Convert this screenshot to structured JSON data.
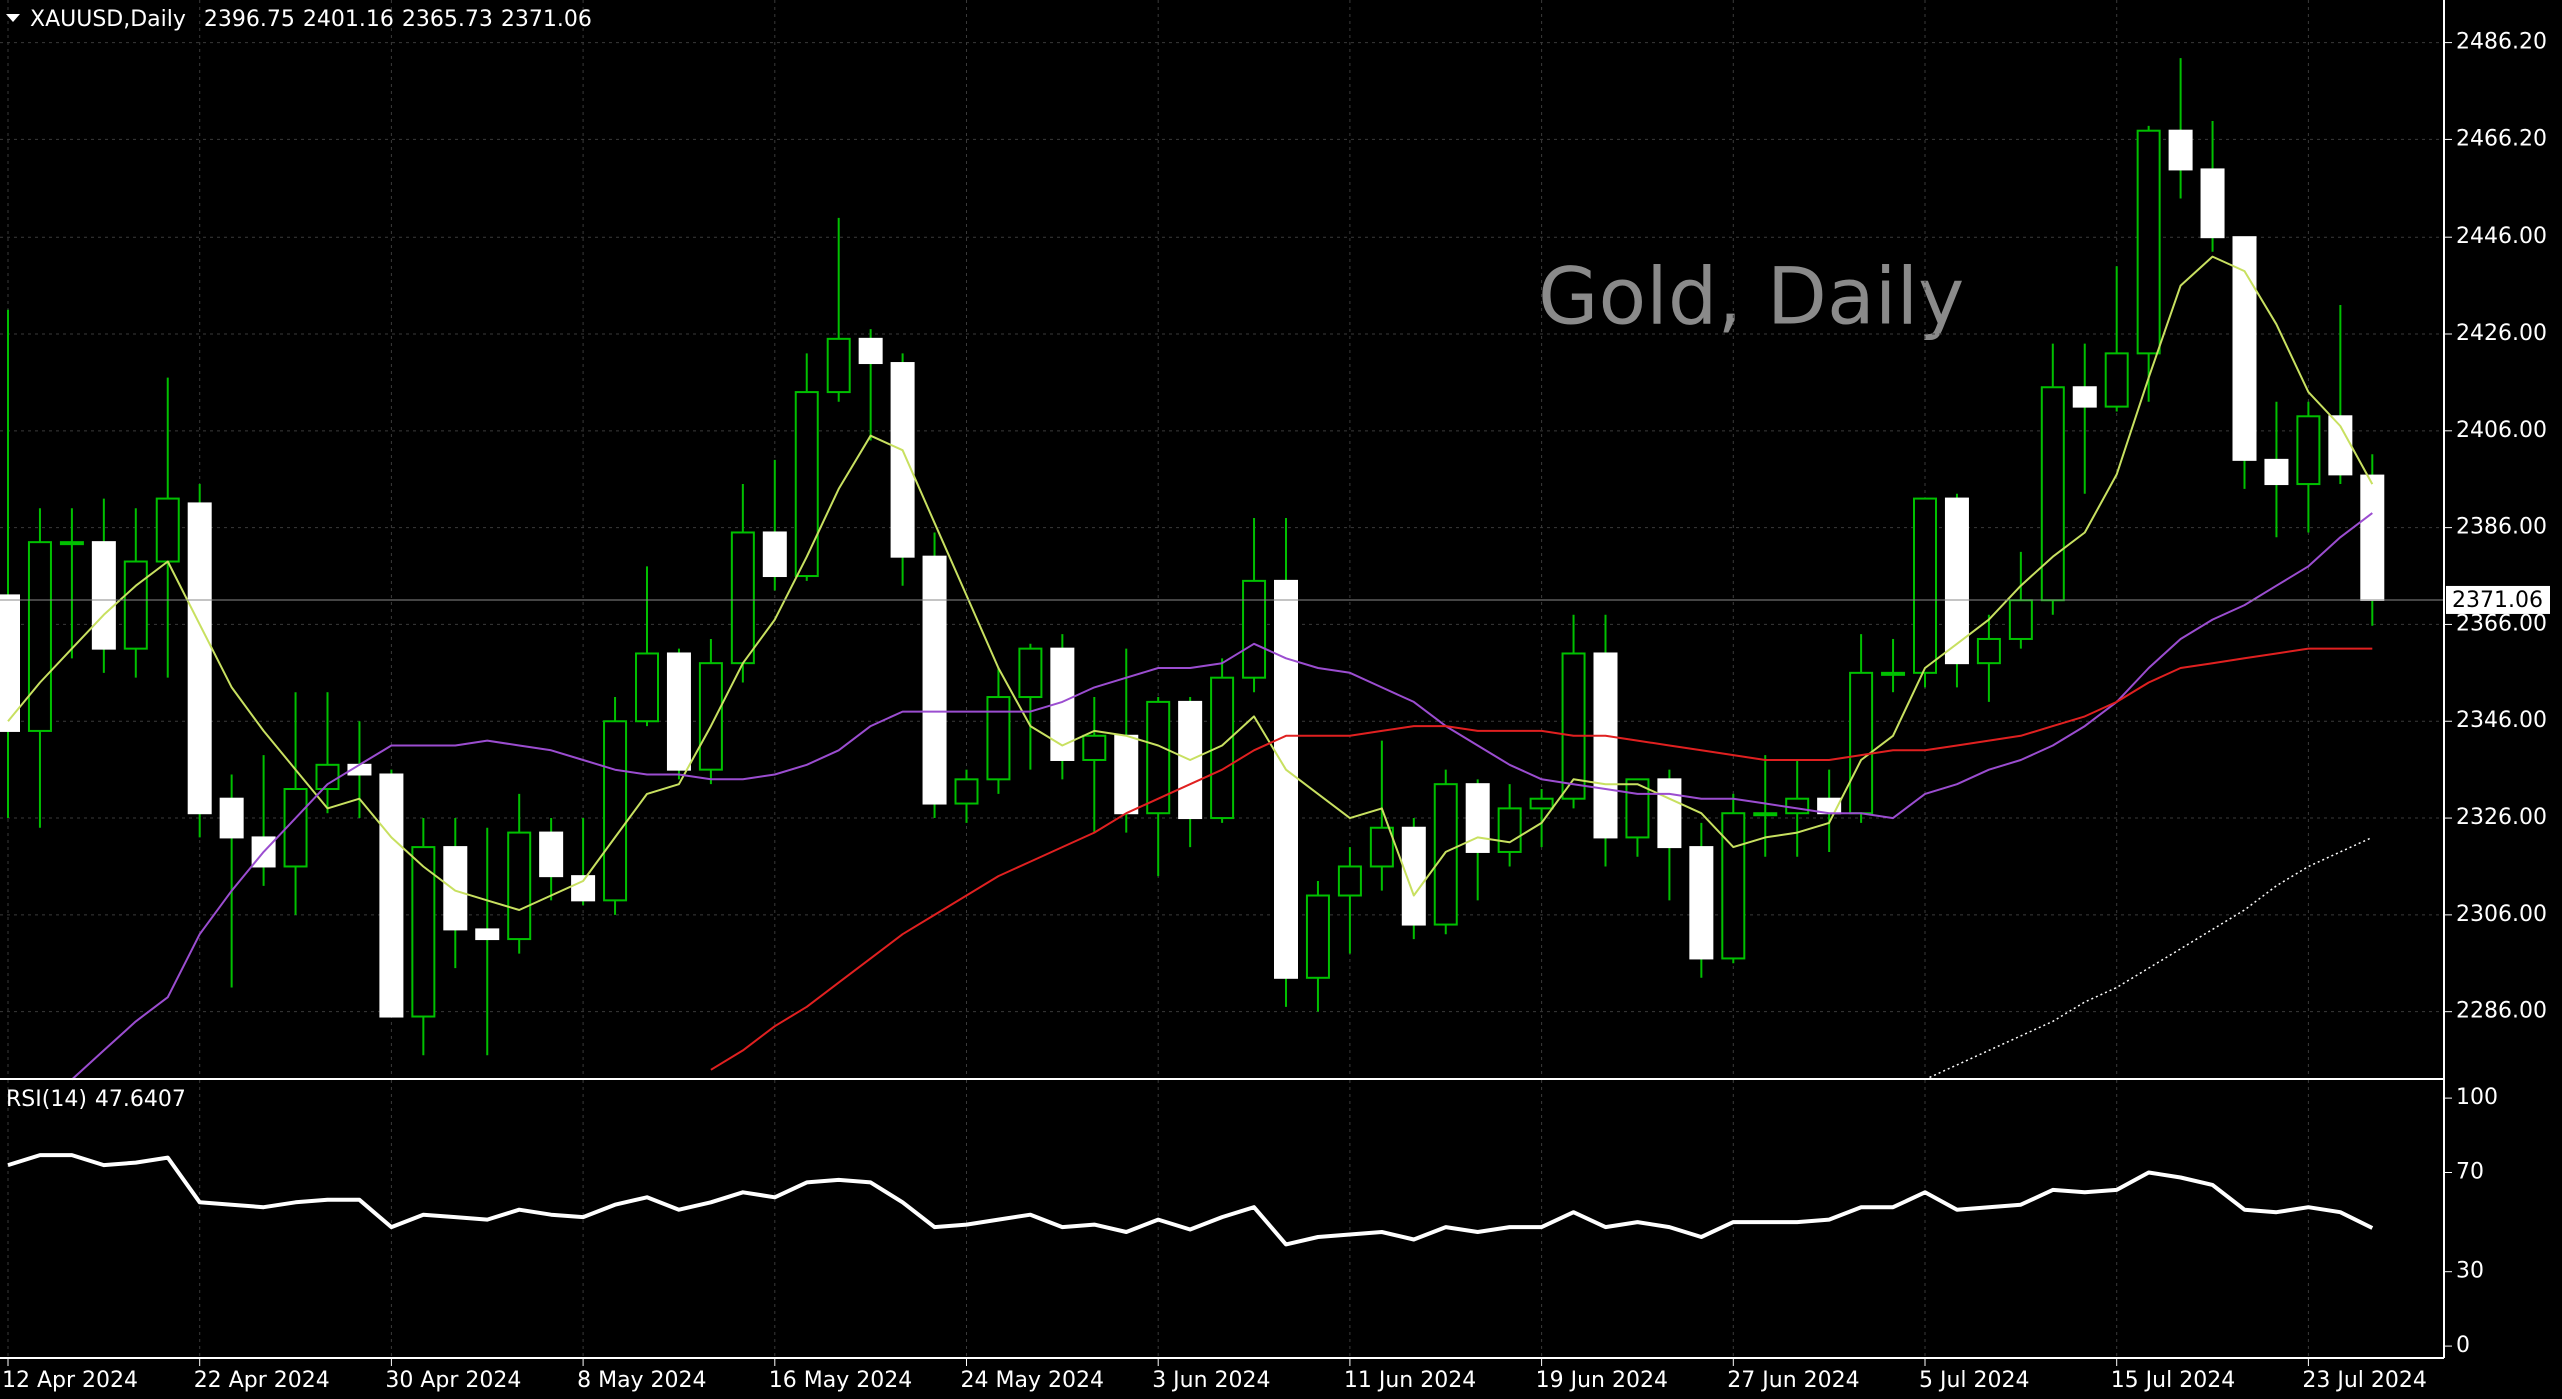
{
  "chart_data": [
    {
      "type": "candlestick",
      "symbol": "XAUUSD,Daily",
      "title": "Gold, Daily",
      "up_color": "#00c000",
      "down_color": "#ffffff",
      "grid": true,
      "categories": [
        "12 Apr 2024",
        null,
        null,
        null,
        null,
        null,
        "22 Apr 2024",
        null,
        null,
        null,
        null,
        null,
        "30 Apr 2024",
        null,
        null,
        null,
        null,
        null,
        "8 May 2024",
        null,
        null,
        null,
        null,
        null,
        "16 May 2024",
        null,
        null,
        null,
        null,
        null,
        "24 May 2024",
        null,
        null,
        null,
        null,
        null,
        "3 Jun 2024",
        null,
        null,
        null,
        null,
        null,
        "11 Jun 2024",
        null,
        null,
        null,
        null,
        null,
        "19 Jun 2024",
        null,
        null,
        null,
        null,
        null,
        "27 Jun 2024",
        null,
        null,
        null,
        null,
        null,
        "5 Jul 2024",
        null,
        null,
        null,
        null,
        null,
        "15 Jul 2024",
        null,
        null,
        null,
        null,
        null,
        "23 Jul 2024",
        null,
        null
      ],
      "open": [
        2372,
        2344,
        2383,
        2383,
        2361,
        2379,
        2391,
        2330,
        2322,
        2316,
        2332,
        2337,
        2335,
        2285,
        2320,
        2303,
        2301,
        2323,
        2314,
        2309,
        2346,
        2360,
        2336,
        2358,
        2385,
        2376,
        2414,
        2425,
        2420,
        2380,
        2329,
        2334,
        2351,
        2361,
        2338,
        2343,
        2327,
        2350,
        2326,
        2355,
        2375,
        2293,
        2310,
        2316,
        2324,
        2304,
        2333,
        2319,
        2328,
        2330,
        2360,
        2322,
        2334,
        2320,
        2297,
        2327,
        2327,
        2330,
        2327,
        2356,
        2356,
        2392,
        2358,
        2363,
        2371,
        2415,
        2411,
        2422,
        2468,
        2460,
        2446,
        2400,
        2395,
        2409,
        2396.75
      ],
      "high": [
        2431,
        2390,
        2390,
        2392,
        2390,
        2417,
        2395,
        2335,
        2339,
        2352,
        2352,
        2346,
        2336,
        2326,
        2326,
        2324,
        2331,
        2326,
        2326,
        2351,
        2378,
        2361,
        2363,
        2395,
        2400,
        2422,
        2450,
        2427,
        2422,
        2385,
        2336,
        2357,
        2362,
        2364,
        2351,
        2361,
        2351,
        2351,
        2359,
        2388,
        2388,
        2313,
        2320,
        2342,
        2326,
        2336,
        2334,
        2333,
        2332,
        2368,
        2368,
        2334,
        2336,
        2325,
        2331,
        2339,
        2338,
        2336,
        2364,
        2363,
        2392,
        2393,
        2368,
        2381,
        2424,
        2424,
        2440,
        2469,
        2483,
        2470,
        2446,
        2412,
        2412,
        2432,
        2401.16
      ],
      "low": [
        2326,
        2324,
        2359,
        2356,
        2355,
        2355,
        2322,
        2291,
        2312,
        2306,
        2327,
        2326,
        2285,
        2277,
        2295,
        2277,
        2298,
        2309,
        2308,
        2306,
        2345,
        2334,
        2333,
        2354,
        2373,
        2375,
        2412,
        2404,
        2374,
        2326,
        2325,
        2331,
        2336,
        2334,
        2323,
        2323,
        2314,
        2320,
        2325,
        2352,
        2287,
        2286,
        2298,
        2311,
        2301,
        2302,
        2309,
        2316,
        2320,
        2328,
        2316,
        2318,
        2309,
        2293,
        2296,
        2318,
        2318,
        2319,
        2325,
        2352,
        2353,
        2353,
        2350,
        2361,
        2368,
        2393,
        2410,
        2412,
        2454,
        2443,
        2394,
        2384,
        2385,
        2395,
        2365.73
      ],
      "close": [
        2344,
        2383,
        2383,
        2361,
        2379,
        2392,
        2327,
        2322,
        2316,
        2332,
        2337,
        2335,
        2285,
        2320,
        2303,
        2301,
        2323,
        2314,
        2309,
        2346,
        2360,
        2336,
        2358,
        2385,
        2376,
        2414,
        2425,
        2420,
        2380,
        2329,
        2334,
        2351,
        2361,
        2338,
        2343,
        2327,
        2350,
        2326,
        2355,
        2375,
        2293,
        2310,
        2316,
        2324,
        2304,
        2333,
        2319,
        2328,
        2330,
        2360,
        2322,
        2334,
        2320,
        2297,
        2327,
        2327,
        2330,
        2327,
        2356,
        2356,
        2392,
        2358,
        2363,
        2371,
        2415,
        2411,
        2422,
        2468,
        2460,
        2446,
        2400,
        2395,
        2409,
        2397,
        2371.06
      ],
      "overlays": [
        {
          "color": "#c8e060",
          "style": "solid",
          "values": [
            2346,
            2354,
            2361,
            2368,
            2374,
            2379,
            2366,
            2353,
            2344,
            2336,
            2328,
            2330,
            2322,
            2316,
            2311,
            2309,
            2307,
            2310,
            2313,
            2322,
            2331,
            2333,
            2345,
            2358,
            2367,
            2380,
            2394,
            2405,
            2402,
            2387,
            2372,
            2357,
            2345,
            2341,
            2344,
            2343,
            2341,
            2338,
            2341,
            2347,
            2336,
            2331,
            2326,
            2328,
            2310,
            2319,
            2322,
            2321,
            2325,
            2334,
            2333,
            2333,
            2330,
            2327,
            2320,
            2322,
            2323,
            2325,
            2338,
            2343,
            2357,
            2362,
            2367,
            2374,
            2380,
            2385,
            2397,
            2417,
            2436,
            2442,
            2439,
            2428,
            2414,
            2407,
            2395
          ]
        },
        {
          "color": "#9b4dd0",
          "style": "solid",
          "values": [
            null,
            null,
            2272,
            2278,
            2284,
            2289,
            2302,
            2311,
            2319,
            2326,
            2333,
            2337,
            2341,
            2341,
            2341,
            2342,
            2341,
            2340,
            2338,
            2336,
            2335,
            2335,
            2334,
            2334,
            2335,
            2337,
            2340,
            2345,
            2348,
            2348,
            2348,
            2348,
            2348,
            2350,
            2353,
            2355,
            2357,
            2357,
            2358,
            2362,
            2359,
            2357,
            2356,
            2353,
            2350,
            2345,
            2341,
            2337,
            2334,
            2333,
            2332,
            2331,
            2331,
            2330,
            2330,
            2329,
            2328,
            2327,
            2327,
            2326,
            2331,
            2333,
            2336,
            2338,
            2341,
            2345,
            2350,
            2357,
            2363,
            2367,
            2370,
            2374,
            2378,
            2384,
            2389
          ]
        },
        {
          "color": "#e02020",
          "style": "solid",
          "values": [
            null,
            null,
            null,
            null,
            null,
            null,
            null,
            null,
            null,
            null,
            null,
            null,
            null,
            null,
            null,
            null,
            null,
            null,
            null,
            null,
            null,
            null,
            2274,
            2278,
            2283,
            2287,
            2292,
            2297,
            2302,
            2306,
            2310,
            2314,
            2317,
            2320,
            2323,
            2327,
            2330,
            2333,
            2336,
            2340,
            2343,
            2343,
            2343,
            2344,
            2345,
            2345,
            2344,
            2344,
            2344,
            2343,
            2343,
            2342,
            2341,
            2340,
            2339,
            2338,
            2338,
            2338,
            2339,
            2340,
            2340,
            2341,
            2342,
            2343,
            2345,
            2347,
            2350,
            2354,
            2357,
            2358,
            2359,
            2360,
            2361,
            2361,
            2361
          ]
        },
        {
          "color": "#ffffff",
          "style": "dotted",
          "values": [
            null,
            null,
            null,
            null,
            null,
            null,
            null,
            null,
            null,
            null,
            null,
            null,
            null,
            null,
            null,
            null,
            null,
            null,
            null,
            null,
            null,
            null,
            null,
            null,
            null,
            null,
            null,
            null,
            null,
            null,
            null,
            null,
            null,
            null,
            null,
            null,
            null,
            null,
            null,
            null,
            null,
            null,
            null,
            null,
            null,
            null,
            null,
            null,
            null,
            null,
            null,
            null,
            null,
            null,
            null,
            null,
            null,
            null,
            null,
            null,
            2272,
            2275,
            2278,
            2281,
            2284,
            2288,
            2291,
            2295,
            2299,
            2303,
            2307,
            2312,
            2316,
            2319,
            2322
          ]
        }
      ],
      "ylim": [
        2272.3,
        2495
      ],
      "yticks": [
        {
          "value": 2286,
          "label": "2286.00"
        },
        {
          "value": 2306,
          "label": "2306.00"
        },
        {
          "value": 2326,
          "label": "2326.00"
        },
        {
          "value": 2346,
          "label": "2346.00"
        },
        {
          "value": 2366,
          "label": "2366.00"
        },
        {
          "value": 2386,
          "label": "2386.00"
        },
        {
          "value": 2406,
          "label": "2406.00"
        },
        {
          "value": 2426,
          "label": "2426.00"
        },
        {
          "value": 2446,
          "label": "2446.00"
        },
        {
          "value": 2466.2,
          "label": "2466.20"
        },
        {
          "value": 2486.2,
          "label": "2486.20"
        }
      ]
    },
    {
      "type": "line",
      "title": "RSI(14)",
      "color": "#ffffff",
      "values": [
        73,
        77,
        77,
        73,
        74,
        76,
        58,
        57,
        56,
        58,
        59,
        59,
        48,
        53,
        52,
        51,
        55,
        53,
        52,
        57,
        60,
        55,
        58,
        62,
        60,
        66,
        67,
        66,
        58,
        48,
        49,
        51,
        53,
        48,
        49,
        46,
        51,
        47,
        52,
        56,
        41,
        44,
        45,
        46,
        43,
        48,
        46,
        48,
        48,
        54,
        48,
        50,
        48,
        44,
        50,
        50,
        50,
        51,
        56,
        56,
        62,
        55,
        56,
        57,
        63,
        62,
        63,
        70,
        68,
        65,
        55,
        54,
        56,
        54,
        47.6407
      ],
      "ylim": [
        -4.8,
        107.3
      ],
      "yticks": [
        0,
        30,
        70,
        100
      ]
    }
  ]
}
